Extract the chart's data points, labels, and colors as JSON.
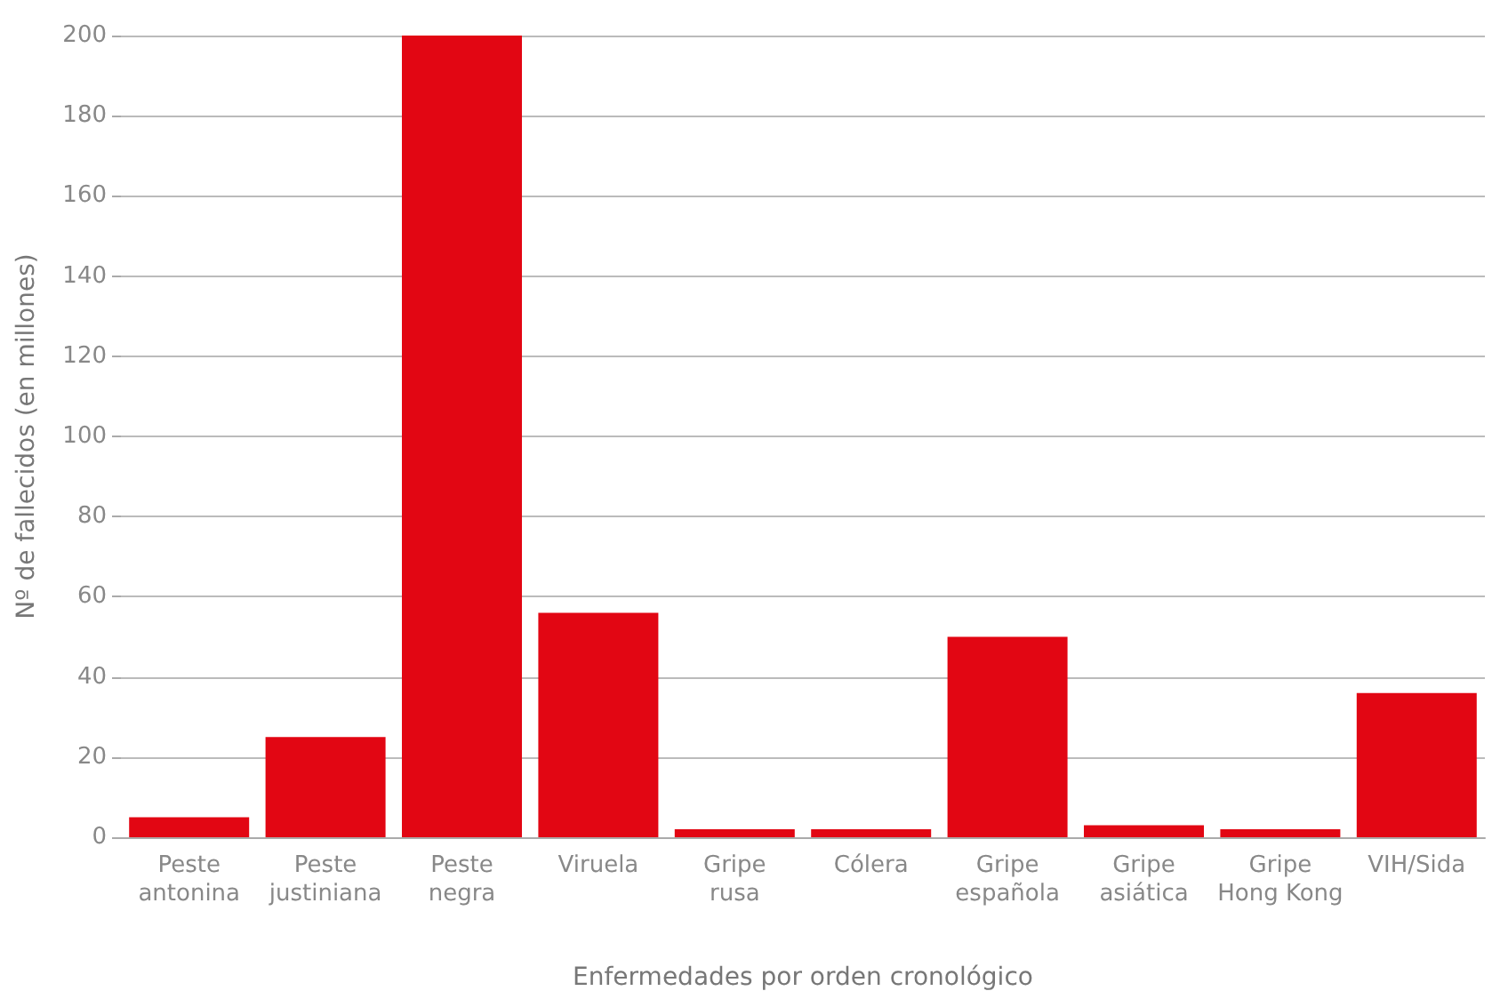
{
  "chart_data": {
    "type": "bar",
    "xlabel": "Enfermedades por orden cronológico",
    "ylabel": "Nº de fallecidos (en millones)",
    "categories": [
      "Peste\nantonina",
      "Peste\njustiniana",
      "Peste\nnegra",
      "Viruela",
      "Gripe\nrusa",
      "Cólera",
      "Gripe\nespañola",
      "Gripe\nasiática",
      "Gripe\nHong Kong",
      "VIH/Sida"
    ],
    "values": [
      5,
      25,
      200,
      56,
      2,
      2,
      50,
      3,
      2,
      36
    ],
    "color": "#e20613",
    "ylim": [
      0,
      200
    ],
    "yticks": [
      0,
      20,
      40,
      60,
      80,
      100,
      120,
      140,
      160,
      180,
      200
    ],
    "grid": "y"
  }
}
